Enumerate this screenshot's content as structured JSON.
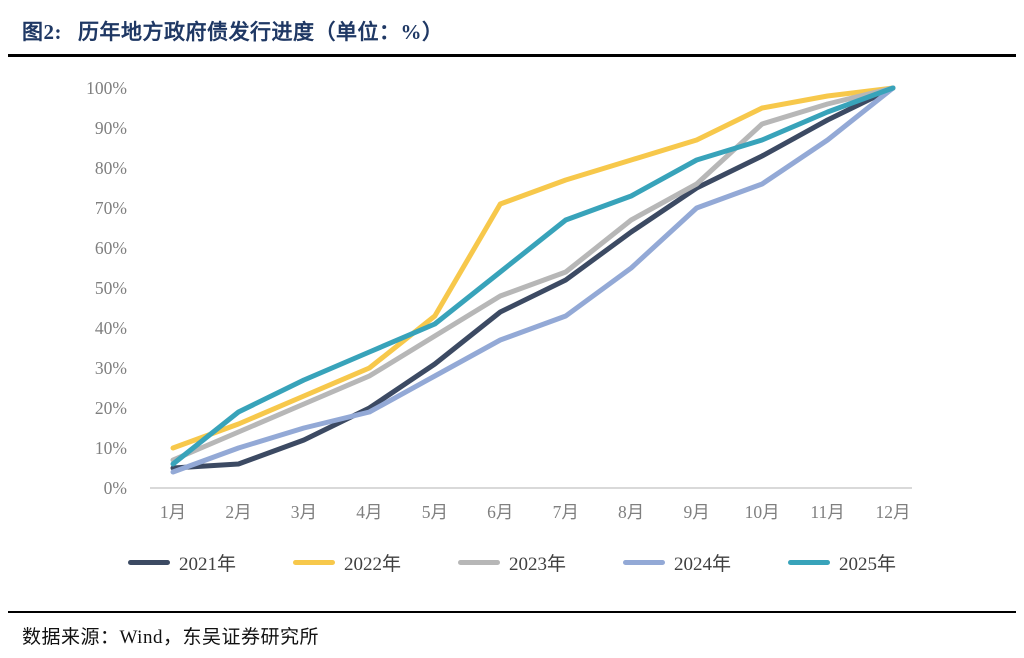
{
  "header": {
    "figure_label": "图2:",
    "title": "历年地方政府债发行进度（单位：%）"
  },
  "footer": {
    "source": "数据来源：Wind，东吴证券研究所"
  },
  "colors": {
    "title_text": "#1F3864",
    "axis_text": "#7F7F7F",
    "axis_line": "#D9D9D9",
    "legend_text": "#404040",
    "divider": "#000000",
    "background": "#FFFFFF"
  },
  "chart_data": {
    "type": "line",
    "title": "历年地方政府债发行进度",
    "unit": "%",
    "categories": [
      "1月",
      "2月",
      "3月",
      "4月",
      "5月",
      "6月",
      "7月",
      "8月",
      "9月",
      "10月",
      "11月",
      "12月"
    ],
    "y_ticks": [
      "0%",
      "10%",
      "20%",
      "30%",
      "40%",
      "50%",
      "60%",
      "70%",
      "80%",
      "90%",
      "100%"
    ],
    "ylim": [
      0,
      100
    ],
    "grid": false,
    "legend_position": "bottom",
    "series": [
      {
        "name": "2021年",
        "color": "#3C4A63",
        "values": [
          5,
          6,
          12,
          20,
          31,
          44,
          52,
          64,
          75,
          83,
          92,
          100
        ]
      },
      {
        "name": "2022年",
        "color": "#F7C84B",
        "values": [
          10,
          16,
          23,
          30,
          43,
          71,
          77,
          82,
          87,
          95,
          98,
          100
        ]
      },
      {
        "name": "2023年",
        "color": "#B7B7B7",
        "values": [
          7,
          14,
          21,
          28,
          38,
          48,
          54,
          67,
          76,
          91,
          96,
          100
        ]
      },
      {
        "name": "2024年",
        "color": "#93A9D6",
        "values": [
          4,
          10,
          15,
          19,
          28,
          37,
          43,
          55,
          70,
          76,
          87,
          100
        ]
      },
      {
        "name": "2025年",
        "color": "#38A3BA",
        "values": [
          6,
          19,
          27,
          34,
          41,
          54,
          67,
          73,
          82,
          87,
          94,
          100
        ]
      }
    ]
  }
}
